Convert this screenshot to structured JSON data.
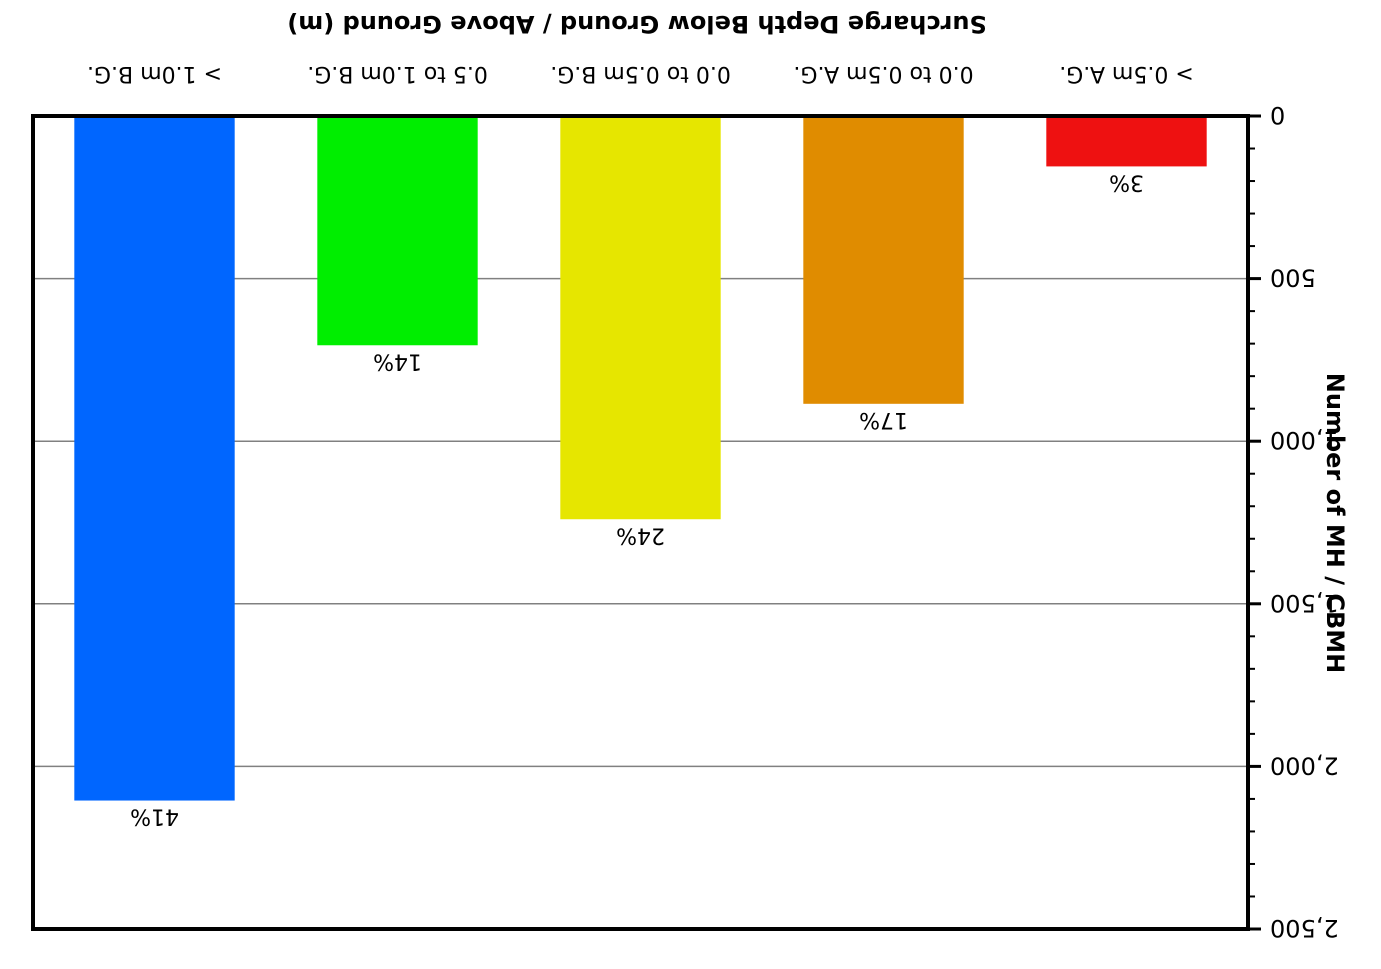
{
  "chart_data": {
    "type": "bar",
    "xlabel": "Surcharge Depth Below Ground / Above Ground (m)",
    "ylabel": "Number of MH / CBMH",
    "categories": [
      "> 1.0m B.G.",
      "0.5 to 1.0m B.G.",
      "0.0 to 0.5m B.G.",
      "0.0 to 0.5m A.G.",
      "> 0.5m A.G."
    ],
    "values": [
      2105,
      705,
      1240,
      885,
      155
    ],
    "data_labels": [
      "41%",
      "14%",
      "24%",
      "17%",
      "3%"
    ],
    "colors": [
      "#0066ff",
      "#00ee00",
      "#e6e600",
      "#e08c00",
      "#ee1111"
    ],
    "ylim": [
      0,
      2500
    ],
    "yticks": [
      0,
      500,
      1000,
      1500,
      2000,
      2500
    ],
    "ytick_labels": [
      "0",
      "500",
      "1,000",
      "1,500",
      "2,000",
      "2,500"
    ],
    "grid": true,
    "orientation": "image rotated 180 degrees"
  }
}
